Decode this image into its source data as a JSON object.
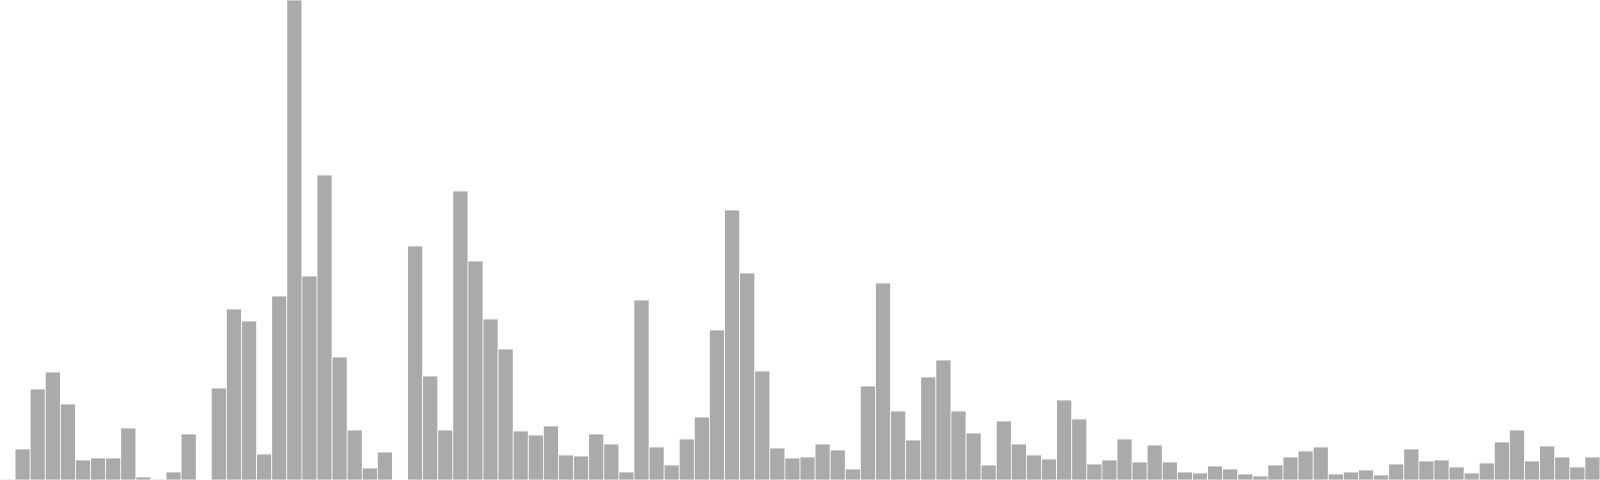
{
  "chart_data": {
    "type": "bar",
    "bar_color": "#aaaaaa",
    "bar_stroke": "#ffffff",
    "background": "#ffffff",
    "axes_visible": false,
    "grid": false,
    "legend": "none",
    "title": "",
    "xlabel": "",
    "ylabel": "",
    "ylim": [
      0,
      480
    ],
    "values": [
      1,
      31,
      91,
      108,
      76,
      20,
      22,
      22,
      52,
      3,
      1,
      8,
      46,
      0,
      92,
      171,
      159,
      26,
      184,
      480,
      204,
      305,
      123,
      50,
      12,
      28,
      0,
      234,
      104,
      50,
      289,
      219,
      161,
      131,
      49,
      45,
      54,
      25,
      24,
      46,
      36,
      8,
      180,
      33,
      15,
      41,
      63,
      150,
      270,
      207,
      109,
      32,
      22,
      23,
      36,
      30,
      11,
      94,
      197,
      69,
      40,
      103,
      120,
      69,
      47,
      15,
      59,
      36,
      25,
      21,
      80,
      61,
      16,
      20,
      41,
      18,
      35,
      18,
      8,
      7,
      14,
      11,
      6,
      4,
      15,
      23,
      29,
      33,
      6,
      8,
      10,
      5,
      16,
      31,
      19,
      20,
      13,
      7,
      17,
      38,
      50,
      19,
      34,
      23,
      13,
      23
    ]
  }
}
